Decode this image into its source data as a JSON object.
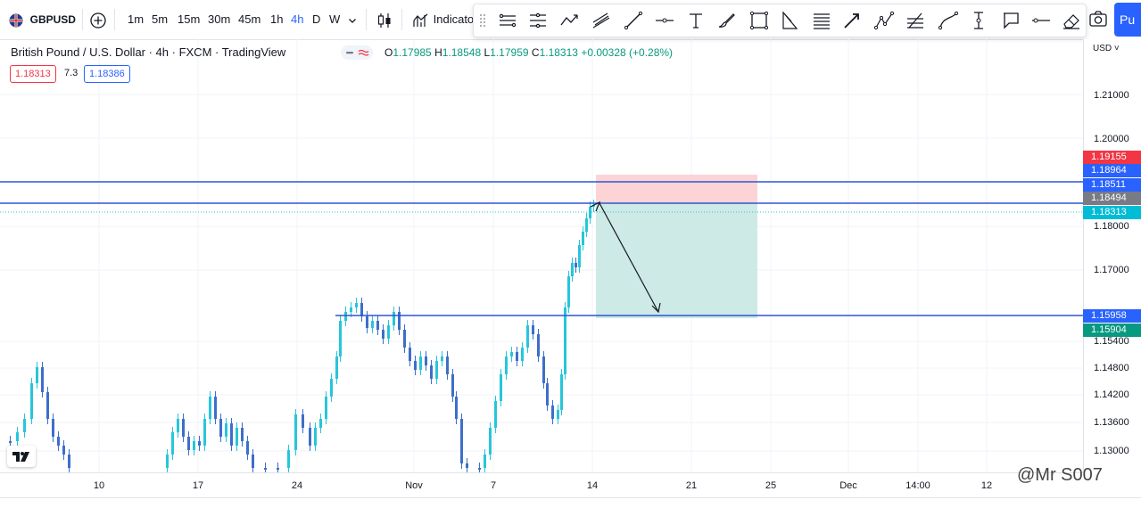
{
  "topbar": {
    "symbol": "GBPUSD",
    "intervals": [
      "1m",
      "5m",
      "15m",
      "30m",
      "45m",
      "1h",
      "4h",
      "D",
      "W"
    ],
    "active_interval": "4h",
    "indicators_label": "Indicato",
    "publish_label": "Pu"
  },
  "legend": {
    "title": "British Pound / U.S. Dollar · 4h · FXCM · TradingView",
    "open_key": "O",
    "open": "1.17985",
    "high_key": "H",
    "high": "1.18548",
    "low_key": "L",
    "low": "1.17959",
    "close_key": "C",
    "close": "1.18313",
    "change": "+0.00328 (+0.28%)",
    "bid": "1.18313",
    "spread": "7.3",
    "ask": "1.18386"
  },
  "axis": {
    "currency": "USD",
    "ticks": [
      "1.21000",
      "1.20000",
      "1.18000",
      "1.17000",
      "1.15400",
      "1.14800",
      "1.14200",
      "1.13600",
      "1.13000"
    ],
    "tags": [
      {
        "label": "1.19155",
        "color": "#f23645"
      },
      {
        "label": "1.18964",
        "color": "#2962ff"
      },
      {
        "label": "1.18511",
        "color": "#2962ff"
      },
      {
        "label": "1.18494",
        "color": "#787b86"
      },
      {
        "label": "1.18313",
        "color": "#00bcd4"
      },
      {
        "label": "1.15958",
        "color": "#2962ff"
      },
      {
        "label": "1.15904",
        "color": "#089981"
      }
    ],
    "x_ticks": [
      "10",
      "17",
      "24",
      "Nov",
      "7",
      "14",
      "21",
      "25",
      "Dec",
      "14:00",
      "12"
    ]
  },
  "watermark": "@Mr S007",
  "colors": {
    "up": "#26c6da",
    "down": "#3d6ec9",
    "level_line": "#2f55d4",
    "stop_zone": "#fcd4d6",
    "target_zone": "#cdeae6"
  },
  "icons": [
    "plus-circle-icon",
    "candles-icon",
    "indicators-icon",
    "grip-icon",
    "trend-angle-icon",
    "horizontal-channel-icon",
    "path-icon",
    "parallel-channel-icon",
    "line-icon",
    "horizontal-ray-icon",
    "text-icon",
    "brush-icon",
    "rectangle-icon",
    "triangle-icon",
    "long-position-icon",
    "arrow-icon",
    "xabcd-icon",
    "fib-icon",
    "curve-icon",
    "vertical-line-icon",
    "callout-icon",
    "horizontal-line-icon",
    "eraser-icon",
    "camera-icon"
  ]
}
